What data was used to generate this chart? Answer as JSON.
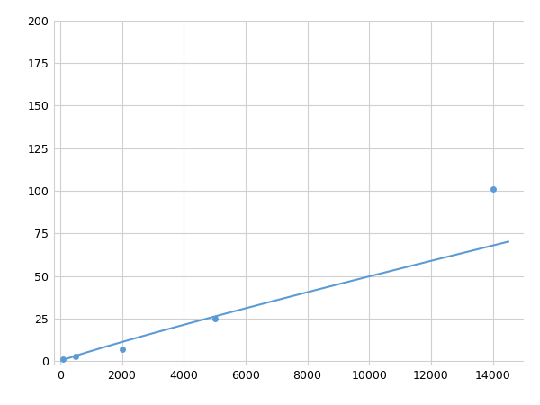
{
  "x_points": [
    100,
    500,
    2000,
    5000,
    14000
  ],
  "y_points": [
    1.0,
    2.5,
    7.0,
    25.0,
    101.0
  ],
  "line_color": "#5b9bd5",
  "marker_color": "#5b9bd5",
  "marker_size": 5,
  "line_width": 1.5,
  "xlim": [
    -200,
    15000
  ],
  "ylim": [
    -2,
    200
  ],
  "xticks": [
    0,
    2000,
    4000,
    6000,
    8000,
    10000,
    12000,
    14000
  ],
  "yticks": [
    0,
    25,
    50,
    75,
    100,
    125,
    150,
    175,
    200
  ],
  "grid_color": "#d0d0d0",
  "background_color": "#ffffff",
  "tick_fontsize": 9
}
